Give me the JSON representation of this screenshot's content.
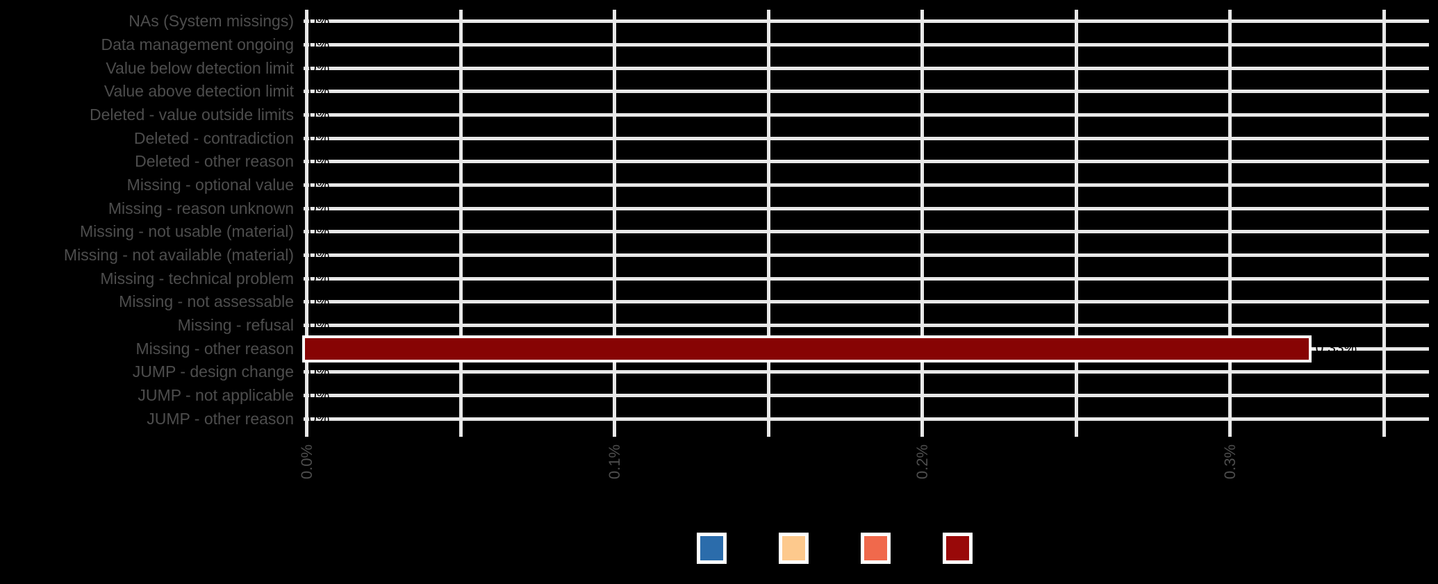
{
  "chart_data": {
    "type": "bar",
    "orientation": "horizontal",
    "title": "",
    "xlabel": "",
    "ylabel": "",
    "categories": [
      "NAs (System missings)",
      "Data management ongoing",
      "Value below detection limit",
      "Value above detection limit",
      "Deleted - value outside limits",
      "Deleted - contradiction",
      "Deleted - other reason",
      "Missing - optional value",
      "Missing - reason unknown",
      "Missing - not usable (material)",
      "Missing - not available (material)",
      "Missing - technical problem",
      "Missing - not assessable",
      "Missing - refusal",
      "Missing - other reason",
      "JUMP - design change",
      "JUMP - not applicable",
      "JUMP - other reason"
    ],
    "values": [
      0,
      0,
      0,
      0,
      0,
      0,
      0,
      0,
      0,
      0,
      0,
      0,
      0,
      0,
      0.326,
      0,
      0,
      0
    ],
    "bar_labels": [
      "0%",
      "0%",
      "0%",
      "0%",
      "0%",
      "0%",
      "0%",
      "0%",
      "0%",
      "0%",
      "0%",
      "0%",
      "0%",
      "0%",
      "0.33%",
      "0%",
      "0%",
      "0%"
    ],
    "highlight_index": 14,
    "x_ticks": [
      {
        "value": 0.0,
        "label": "0.0%"
      },
      {
        "value": 0.1,
        "label": "0.1%"
      },
      {
        "value": 0.2,
        "label": "0.2%"
      },
      {
        "value": 0.3,
        "label": "0.3%"
      }
    ],
    "x_minor_ticks": [
      0.05,
      0.15,
      0.25,
      0.35
    ],
    "xlim": [
      0,
      0.365
    ],
    "grid": true,
    "legend_position": "bottom",
    "colors": {
      "background": "#000000",
      "gridline": "#e8e8e8",
      "axis_text": "#4d4d4d",
      "bar_fill": "#870404",
      "bar_stroke": "#ffffff",
      "value_label_text": "#000000"
    },
    "legend_keys": [
      {
        "name": "blue",
        "color": "#2B6CAB"
      },
      {
        "name": "peach",
        "color": "#FDC98D"
      },
      {
        "name": "salmon",
        "color": "#F0694C"
      },
      {
        "name": "dark-red",
        "color": "#990909"
      }
    ]
  }
}
